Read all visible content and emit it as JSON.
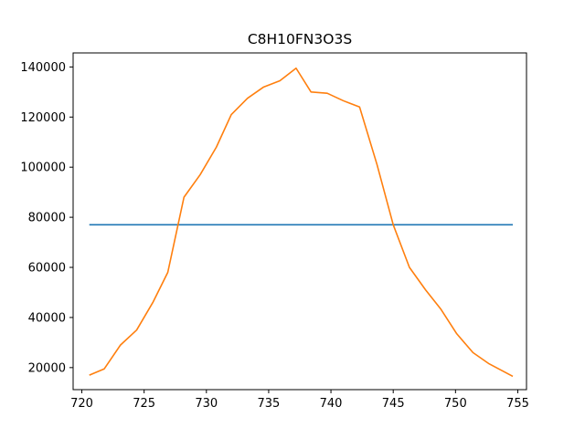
{
  "chart_data": {
    "type": "line",
    "title": "C8H10FN3O3S",
    "xlabel": "",
    "ylabel": "",
    "xlim": [
      719.3,
      755.7
    ],
    "ylim": [
      11200,
      145600
    ],
    "grid": false,
    "legend": "none",
    "x_ticks": [
      720,
      725,
      730,
      735,
      740,
      745,
      750,
      755
    ],
    "x_tick_labels": [
      "720",
      "725",
      "730",
      "735",
      "740",
      "745",
      "750",
      "755"
    ],
    "y_ticks": [
      20000,
      40000,
      60000,
      80000,
      100000,
      120000,
      140000
    ],
    "y_tick_labels": [
      "20000",
      "40000",
      "60000",
      "80000",
      "100000",
      "120000",
      "140000"
    ],
    "series": [
      {
        "color": "#1f77b4",
        "x": [
          720.6,
          754.6
        ],
        "y": [
          77000,
          77000
        ]
      },
      {
        "color": "#ff7f0e",
        "x": [
          720.6,
          721.8,
          723.1,
          724.4,
          725.7,
          726.9,
          728.2,
          729.5,
          730.8,
          732.0,
          733.3,
          734.6,
          735.9,
          737.2,
          738.4,
          739.7,
          741.0,
          742.3,
          743.7,
          745.0,
          746.3,
          747.6,
          748.8,
          750.1,
          751.4,
          752.7,
          754.6
        ],
        "y": [
          17000,
          19500,
          29000,
          35000,
          46000,
          58000,
          88000,
          97000,
          108000,
          121000,
          127500,
          132000,
          134500,
          139500,
          130000,
          129500,
          126500,
          124000,
          101000,
          77000,
          60000,
          51000,
          43500,
          33500,
          26000,
          21500,
          16500
        ]
      }
    ]
  }
}
